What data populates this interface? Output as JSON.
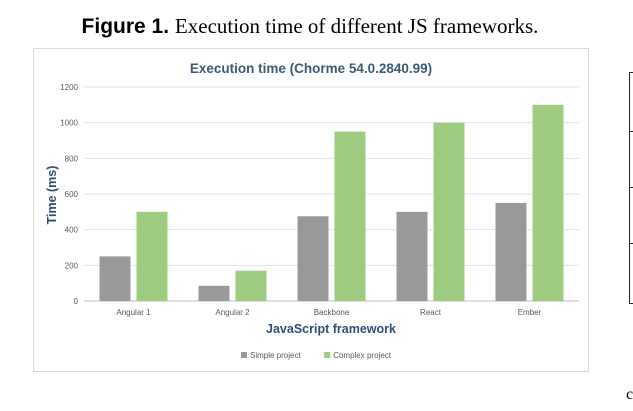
{
  "figure": {
    "label": "Figure 1.",
    "caption": "Execution time of different JS frameworks."
  },
  "side_glyph": "c",
  "chart_data": {
    "type": "bar",
    "title": "Execution time (Chorme 54.0.2840.99)",
    "xlabel": "JavaScript framework",
    "ylabel": "Time (ms)",
    "categories": [
      "Angular 1",
      "Angular 2",
      "Backbone",
      "React",
      "Ember"
    ],
    "series": [
      {
        "name": "Simple project",
        "values": [
          250,
          85,
          475,
          500,
          550
        ],
        "color": "#999999"
      },
      {
        "name": "Complex project",
        "values": [
          500,
          170,
          950,
          1000,
          1100
        ],
        "color": "#9dcb7f"
      }
    ],
    "ylim": [
      0,
      1200
    ],
    "yticks": [
      0,
      200,
      400,
      600,
      800,
      1000,
      1200
    ],
    "grid": true,
    "legend": "bottom",
    "title_color": "#3b5a7a",
    "axis_label_color": "#2f4f75"
  }
}
